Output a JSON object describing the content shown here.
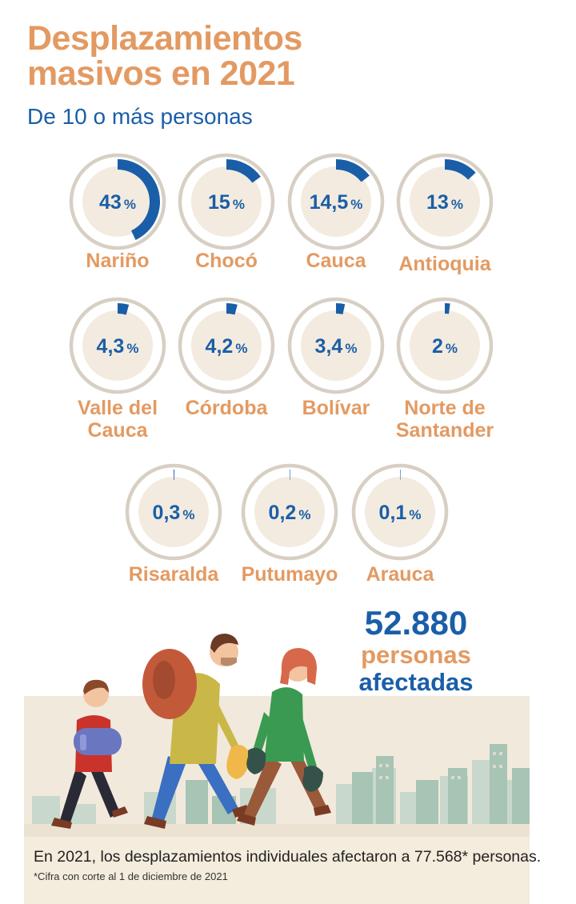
{
  "title_line1": "Desplazamientos",
  "title_line2": "masivos en 2021",
  "subtitle": "De 10 o más personas",
  "chart_data": {
    "type": "pie",
    "title": "Desplazamientos masivos en 2021",
    "subtitle": "De 10 o más personas",
    "unit": "%",
    "items": [
      {
        "label": "Nariño",
        "value": 43,
        "display": "43"
      },
      {
        "label": "Chocó",
        "value": 15,
        "display": "15"
      },
      {
        "label": "Cauca",
        "value": 14.5,
        "display": "14,5"
      },
      {
        "label": "Antioquia",
        "value": 13,
        "display": "13"
      },
      {
        "label_lines": [
          "Valle del",
          "Cauca"
        ],
        "label": "Valle del Cauca",
        "value": 4.3,
        "display": "4,3"
      },
      {
        "label": "Córdoba",
        "value": 4.2,
        "display": "4,2"
      },
      {
        "label": "Bolívar",
        "value": 3.4,
        "display": "3,4"
      },
      {
        "label_lines": [
          "Norte de",
          "Santander"
        ],
        "label": "Norte de Santander",
        "value": 2,
        "display": "2"
      },
      {
        "label": "Risaralda",
        "value": 0.3,
        "display": "0,3"
      },
      {
        "label": "Putumayo",
        "value": 0.2,
        "display": "0,2"
      },
      {
        "label": "Arauca",
        "value": 0.1,
        "display": "0,1"
      }
    ]
  },
  "total": {
    "number": "52.880",
    "line1": "personas",
    "line2": "afectadas"
  },
  "footer": {
    "note": "En 2021, los desplazamientos individuales afectaron a 77.568* personas.",
    "footnote": "*Cifra con corte al 1 de diciembre de 2021"
  },
  "colors": {
    "accent": "#1a5ea8",
    "orange": "#e39a62",
    "ring": "#d8cfc4",
    "fill": "#f3ebdf"
  }
}
